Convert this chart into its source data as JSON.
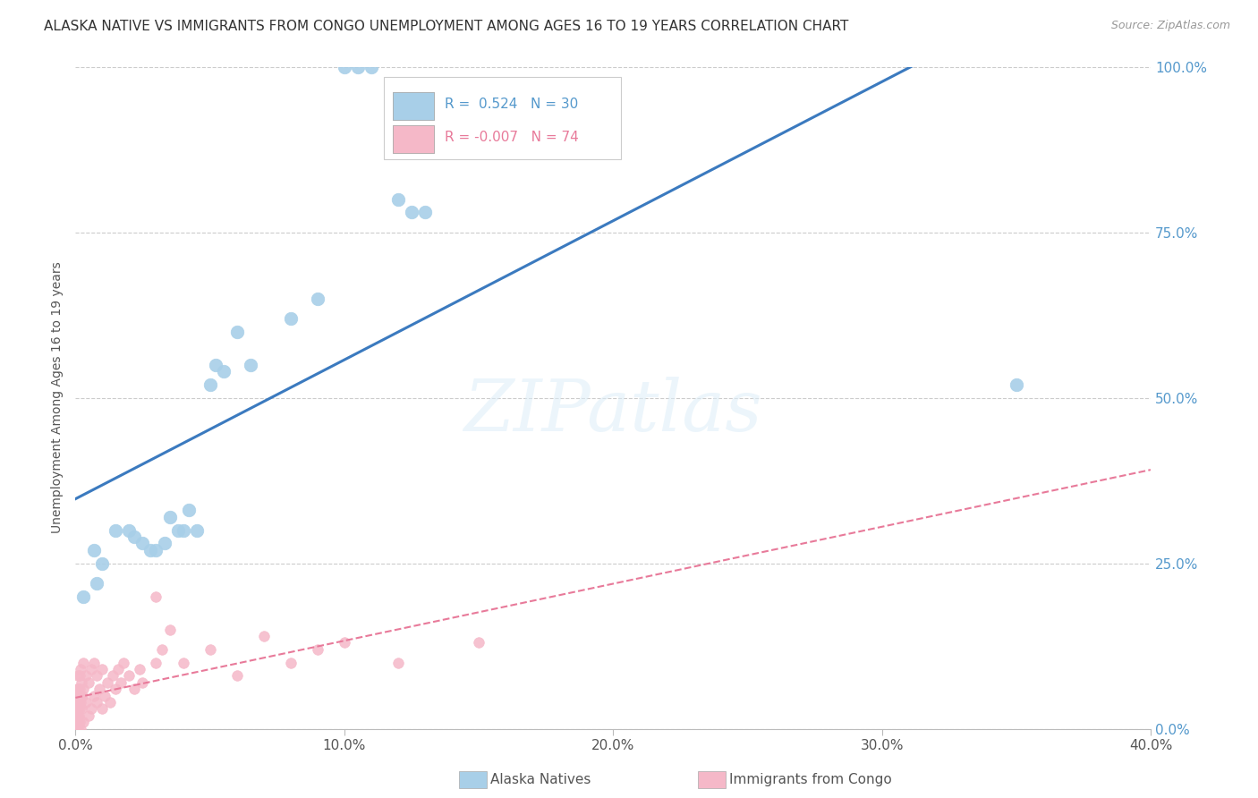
{
  "title": "ALASKA NATIVE VS IMMIGRANTS FROM CONGO UNEMPLOYMENT AMONG AGES 16 TO 19 YEARS CORRELATION CHART",
  "source": "Source: ZipAtlas.com",
  "xlabel_ticks": [
    "0.0%",
    "",
    "",
    "",
    "10.0%",
    "",
    "",
    "",
    "20.0%",
    "",
    "",
    "",
    "30.0%",
    "",
    "",
    "",
    "40.0%"
  ],
  "xlabel_tick_vals": [
    0.0,
    0.025,
    0.05,
    0.075,
    0.1,
    0.125,
    0.15,
    0.175,
    0.2,
    0.225,
    0.25,
    0.275,
    0.3,
    0.325,
    0.35,
    0.375,
    0.4
  ],
  "ylabel": "Unemployment Among Ages 16 to 19 years",
  "ylabel_ticks": [
    "100.0%",
    "75.0%",
    "50.0%",
    "25.0%",
    ""
  ],
  "ylabel_tick_vals": [
    1.0,
    0.75,
    0.5,
    0.25,
    0.0
  ],
  "blue_R": 0.524,
  "blue_N": 30,
  "pink_R": -0.007,
  "pink_N": 74,
  "blue_color": "#a8cfe8",
  "pink_color": "#f5b8c8",
  "blue_line_color": "#3b7abf",
  "pink_line_color": "#e87a9a",
  "legend_blue_label": "Alaska Natives",
  "legend_pink_label": "Immigrants from Congo",
  "watermark_text": "ZIPatlas",
  "blue_scatter_x": [
    0.003,
    0.007,
    0.008,
    0.01,
    0.015,
    0.02,
    0.022,
    0.025,
    0.028,
    0.03,
    0.033,
    0.035,
    0.038,
    0.04,
    0.042,
    0.045,
    0.05,
    0.052,
    0.055,
    0.06,
    0.065,
    0.08,
    0.09,
    0.1,
    0.105,
    0.11,
    0.12,
    0.125,
    0.13,
    0.35
  ],
  "blue_scatter_y": [
    0.2,
    0.27,
    0.22,
    0.25,
    0.3,
    0.3,
    0.29,
    0.28,
    0.27,
    0.27,
    0.28,
    0.32,
    0.3,
    0.3,
    0.33,
    0.3,
    0.52,
    0.55,
    0.54,
    0.6,
    0.55,
    0.62,
    0.65,
    1.0,
    1.0,
    1.0,
    0.8,
    0.78,
    0.78,
    0.52
  ],
  "pink_scatter_x": [
    0.0002,
    0.0002,
    0.0003,
    0.0003,
    0.0004,
    0.0004,
    0.0005,
    0.0005,
    0.0006,
    0.0006,
    0.0007,
    0.0007,
    0.0008,
    0.0008,
    0.0009,
    0.001,
    0.001,
    0.001,
    0.001,
    0.0012,
    0.0013,
    0.0014,
    0.0015,
    0.0015,
    0.0016,
    0.0017,
    0.0018,
    0.002,
    0.002,
    0.002,
    0.0022,
    0.0023,
    0.0025,
    0.003,
    0.003,
    0.003,
    0.004,
    0.004,
    0.005,
    0.005,
    0.006,
    0.006,
    0.007,
    0.007,
    0.008,
    0.008,
    0.009,
    0.01,
    0.01,
    0.011,
    0.012,
    0.013,
    0.014,
    0.015,
    0.016,
    0.017,
    0.018,
    0.02,
    0.022,
    0.024,
    0.025,
    0.03,
    0.03,
    0.032,
    0.035,
    0.04,
    0.05,
    0.06,
    0.07,
    0.08,
    0.09,
    0.1,
    0.12,
    0.15
  ],
  "pink_scatter_y": [
    0.0,
    0.02,
    0.0,
    0.03,
    0.01,
    0.04,
    0.0,
    0.02,
    0.01,
    0.05,
    0.02,
    0.06,
    0.01,
    0.04,
    0.02,
    0.0,
    0.03,
    0.06,
    0.08,
    0.02,
    0.04,
    0.01,
    0.05,
    0.08,
    0.03,
    0.06,
    0.04,
    0.0,
    0.05,
    0.09,
    0.03,
    0.07,
    0.05,
    0.01,
    0.06,
    0.1,
    0.04,
    0.08,
    0.02,
    0.07,
    0.03,
    0.09,
    0.05,
    0.1,
    0.04,
    0.08,
    0.06,
    0.03,
    0.09,
    0.05,
    0.07,
    0.04,
    0.08,
    0.06,
    0.09,
    0.07,
    0.1,
    0.08,
    0.06,
    0.09,
    0.07,
    0.1,
    0.2,
    0.12,
    0.15,
    0.1,
    0.12,
    0.08,
    0.14,
    0.1,
    0.12,
    0.13,
    0.1,
    0.13
  ],
  "xlim": [
    0.0,
    0.4
  ],
  "ylim": [
    0.0,
    1.0
  ],
  "grid_color": "#cccccc",
  "bg_color": "#ffffff",
  "title_fontsize": 11,
  "source_fontsize": 9,
  "tick_fontsize": 11,
  "ylabel_fontsize": 10
}
